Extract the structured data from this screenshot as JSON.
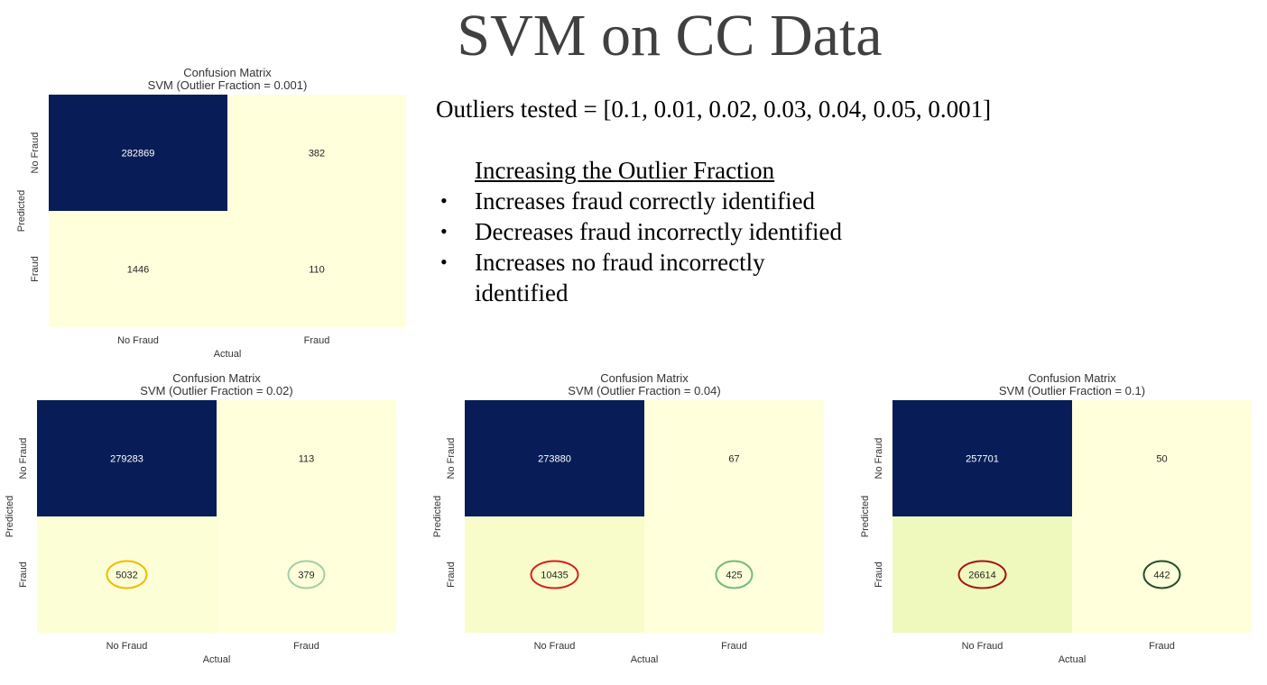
{
  "slide": {
    "title": "SVM on CC Data",
    "outliers_tested": "Outliers tested = [0.1, 0.01, 0.02, 0.03, 0.04, 0.05, 0.001]",
    "findings_heading": "Increasing the Outlier Fraction",
    "findings": [
      "Increases fraud correctly identified",
      "Decreases fraud incorrectly identified",
      "Increases no fraud incorrectly identified"
    ]
  },
  "colors": {
    "dark": "#081d58",
    "light": "#ffffdc",
    "medium_light": "#f0f9bd",
    "axis_text": "#333333"
  },
  "chart_data": [
    {
      "type": "heatmap",
      "title": "Confusion Matrix",
      "subtitle": "SVM (Outlier Fraction = 0.001)",
      "xlabel": "Actual",
      "ylabel": "Predicted",
      "x_categories": [
        "No Fraud",
        "Fraud"
      ],
      "y_categories": [
        "No Fraud",
        "Fraud"
      ],
      "values": [
        [
          282869,
          382
        ],
        [
          1446,
          110
        ]
      ],
      "cell_colors": [
        [
          "#081d58",
          "#ffffdc"
        ],
        [
          "#ffffdc",
          "#ffffdc"
        ]
      ],
      "highlights": []
    },
    {
      "type": "heatmap",
      "title": "Confusion Matrix",
      "subtitle": "SVM (Outlier Fraction = 0.02)",
      "xlabel": "Actual",
      "ylabel": "Predicted",
      "x_categories": [
        "No Fraud",
        "Fraud"
      ],
      "y_categories": [
        "No Fraud",
        "Fraud"
      ],
      "values": [
        [
          279283,
          113
        ],
        [
          5032,
          379
        ]
      ],
      "cell_colors": [
        [
          "#081d58",
          "#ffffdc"
        ],
        [
          "#fcfed5",
          "#ffffdc"
        ]
      ],
      "highlights": [
        {
          "row": 1,
          "col": 0,
          "color": "#f2b800"
        },
        {
          "row": 1,
          "col": 1,
          "color": "#9fd0a5"
        }
      ]
    },
    {
      "type": "heatmap",
      "title": "Confusion Matrix",
      "subtitle": "SVM (Outlier Fraction = 0.04)",
      "xlabel": "Actual",
      "ylabel": "Predicted",
      "x_categories": [
        "No Fraud",
        "Fraud"
      ],
      "y_categories": [
        "No Fraud",
        "Fraud"
      ],
      "values": [
        [
          273880,
          67
        ],
        [
          10435,
          425
        ]
      ],
      "cell_colors": [
        [
          "#081d58",
          "#ffffdc"
        ],
        [
          "#f8fccb",
          "#ffffdc"
        ]
      ],
      "highlights": [
        {
          "row": 1,
          "col": 0,
          "color": "#d42020"
        },
        {
          "row": 1,
          "col": 1,
          "color": "#6fba7d"
        }
      ]
    },
    {
      "type": "heatmap",
      "title": "Confusion Matrix",
      "subtitle": "SVM (Outlier Fraction = 0.1)",
      "xlabel": "Actual",
      "ylabel": "Predicted",
      "x_categories": [
        "No Fraud",
        "Fraud"
      ],
      "y_categories": [
        "No Fraud",
        "Fraud"
      ],
      "values": [
        [
          257701,
          50
        ],
        [
          26614,
          442
        ]
      ],
      "cell_colors": [
        [
          "#081d58",
          "#ffffdc"
        ],
        [
          "#f0f9bd",
          "#ffffdc"
        ]
      ],
      "highlights": [
        {
          "row": 1,
          "col": 0,
          "color": "#a11616"
        },
        {
          "row": 1,
          "col": 1,
          "color": "#1f4d2c"
        }
      ]
    }
  ]
}
